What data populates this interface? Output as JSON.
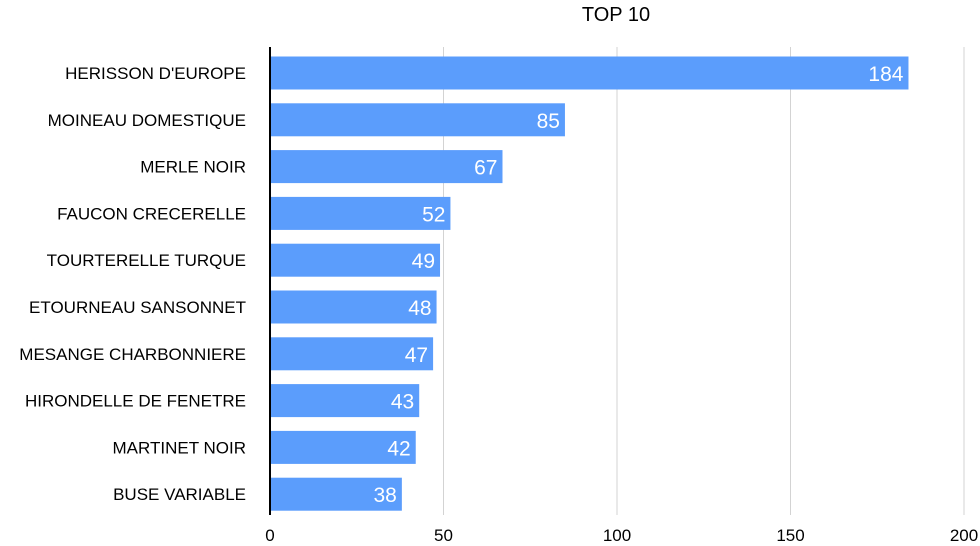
{
  "chart_data": {
    "type": "bar",
    "orientation": "horizontal",
    "title": "TOP 10",
    "xlabel": "",
    "ylabel": "",
    "categories": [
      "HERISSON D'EUROPE",
      "MOINEAU DOMESTIQUE",
      "MERLE NOIR",
      "FAUCON CRECERELLE",
      "TOURTERELLE TURQUE",
      "ETOURNEAU SANSONNET",
      "MESANGE CHARBONNIERE",
      "HIRONDELLE DE FENETRE",
      "MARTINET NOIR",
      "BUSE VARIABLE"
    ],
    "values": [
      184,
      85,
      67,
      52,
      49,
      48,
      47,
      43,
      42,
      38
    ],
    "xlim": [
      0,
      200
    ],
    "x_ticks": [
      "0",
      "50",
      "100",
      "150",
      "200"
    ],
    "data_labels": [
      "184",
      "85",
      "67",
      "52",
      "49",
      "48",
      "47",
      "43",
      "42",
      "38"
    ],
    "grid": true,
    "legend": "none",
    "colors": {
      "bar": "#5b9dfc",
      "grid": "#d3d3d3",
      "axis": "#000000",
      "label": "#ffffff"
    }
  }
}
